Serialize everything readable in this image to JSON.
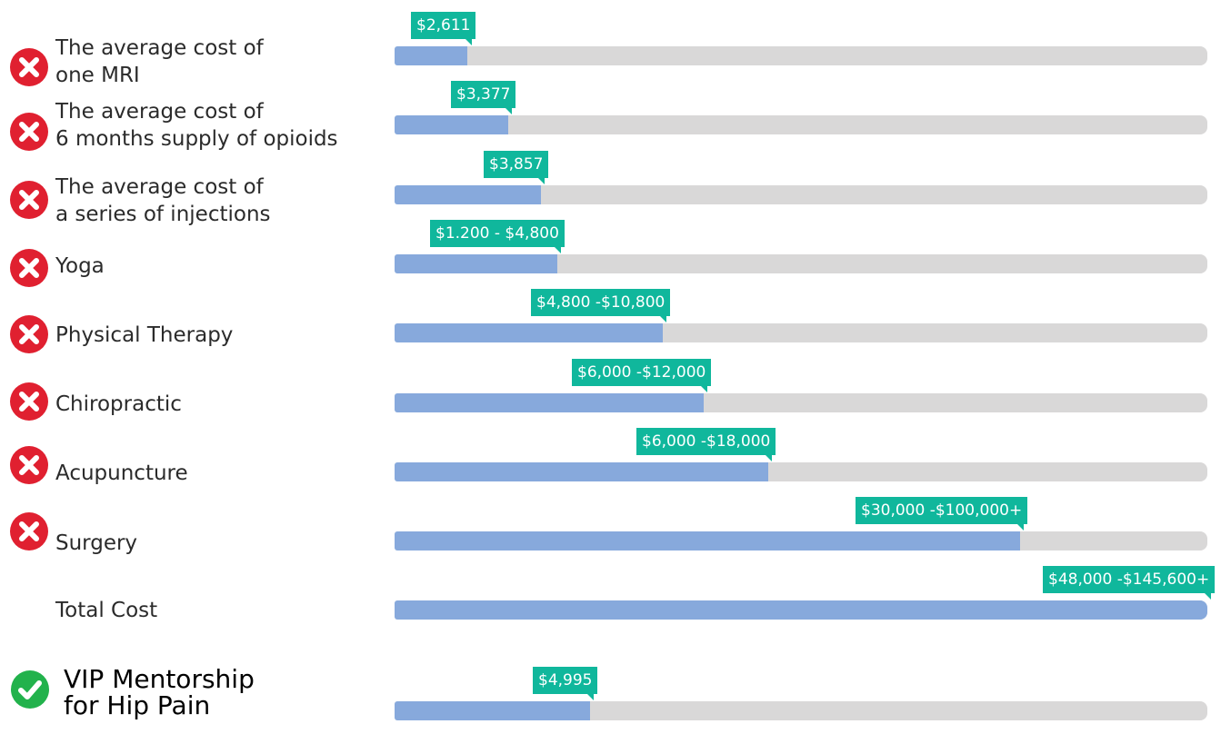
{
  "colors": {
    "fill": "#87a9dc",
    "track": "#d9d8d8",
    "tag": "#10b79c",
    "negative_icon": "#e02030",
    "positive_icon": "#22b24c"
  },
  "chart_data": {
    "type": "bar",
    "orientation": "horizontal",
    "grid": false,
    "legend": "none",
    "categories": [
      "The average cost of one MRI",
      "The average cost of 6 months supply of opioids",
      "The average cost of a series of injections",
      "Yoga",
      "Physical Therapy",
      "Chiropractic",
      "Acupuncture",
      "Surgery",
      "Total Cost",
      "VIP Mentorship for Hip Pain"
    ],
    "values": [
      0.09,
      0.14,
      0.18,
      0.2,
      0.33,
      0.38,
      0.46,
      0.77,
      1.0,
      0.24
    ],
    "value_labels": [
      "$2,611",
      "$3,377",
      "$3,857",
      "$1.200 - $4,800",
      "$4,800 -$10,800",
      "$6,000 -$12,000",
      "$6,000 -$18,000",
      "$30,000 -$100,000+",
      "$48,000 -$145,600+",
      "$4,995"
    ],
    "icons": [
      "x-circle-icon",
      "x-circle-icon",
      "x-circle-icon",
      "x-circle-icon",
      "x-circle-icon",
      "x-circle-icon",
      "x-circle-icon",
      "x-circle-icon",
      "none",
      "check-circle-icon"
    ],
    "label_lines": [
      [
        "The average cost of",
        "one MRI"
      ],
      [
        "The average cost of",
        "6 months supply of opioids"
      ],
      [
        "The average cost of",
        "a series of injections"
      ],
      [
        "Yoga"
      ],
      [
        "Physical Therapy"
      ],
      [
        "Chiropractic"
      ],
      [
        "Acupuncture"
      ],
      [
        "Surgery"
      ],
      [
        "Total Cost"
      ],
      [
        "VIP Mentorship",
        "for Hip Pain"
      ]
    ]
  }
}
